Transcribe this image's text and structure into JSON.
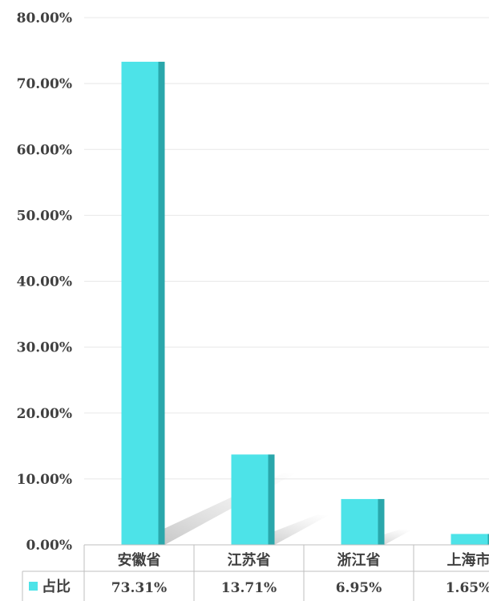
{
  "chart_data": {
    "type": "bar",
    "categories": [
      "安徽省",
      "江苏省",
      "浙江省",
      "上海市"
    ],
    "series": [
      {
        "name": "占比",
        "values": [
          73.31,
          13.71,
          6.95,
          1.65
        ],
        "labels": [
          "73.31%",
          "13.71%",
          "6.95%",
          "1.65%"
        ]
      }
    ],
    "ylim": [
      0,
      80
    ],
    "yticks": [
      "0.00%",
      "10.00%",
      "20.00%",
      "30.00%",
      "40.00%",
      "50.00%",
      "60.00%",
      "70.00%",
      "80.00%"
    ],
    "grid": true,
    "legend_placement": "data-table-left",
    "colors": {
      "bar_front": "#4DE3E8",
      "bar_side": "#2AA7AB",
      "grid": "#E8E8E8",
      "table_border": "#BFBFBF"
    }
  }
}
